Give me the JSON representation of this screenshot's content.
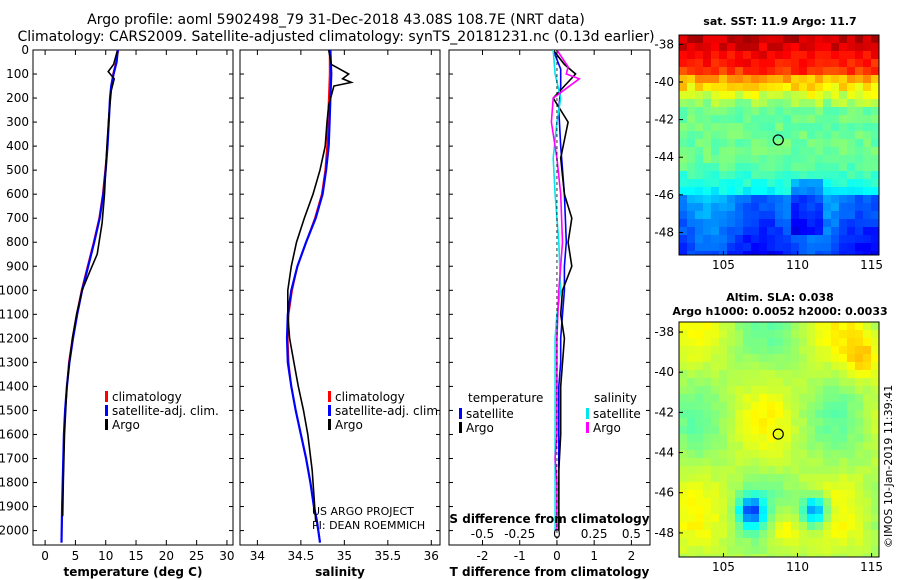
{
  "title_line1": "Argo profile: aoml 5902498_79 31-Dec-2018 43.08S 108.7E (NRT data)",
  "title_line2": "Climatology: CARS2009. Satellite-adjusted climatology: synTS_20181231.nc (0.13d earlier)",
  "credit_line1": "US ARGO PROJECT",
  "credit_line2": "PI: DEAN ROEMMICH",
  "stamp": "©IMOS 10-Jan-2019 11:39:41",
  "colors": {
    "climatology": "#ff0000",
    "satellite": "#0000ff",
    "argo": "#000000",
    "salinity_satellite": "#00e5ee",
    "salinity_argo": "#ff00ff"
  },
  "chart_data": [
    {
      "type": "line",
      "xlabel": "temperature (deg C)",
      "ylabel": "",
      "xlim": [
        -2,
        31
      ],
      "ylim": [
        2060,
        0
      ],
      "xticks": [
        0,
        5,
        10,
        15,
        20,
        25,
        30
      ],
      "yticks": [
        0,
        100,
        200,
        300,
        400,
        500,
        600,
        700,
        800,
        900,
        1000,
        1100,
        1200,
        1300,
        1400,
        1500,
        1600,
        1700,
        1800,
        1900,
        2000
      ],
      "legend": [
        "climatology",
        "satellite-adj. clim.",
        "Argo"
      ],
      "series": [
        {
          "name": "climatology",
          "x": [
            12.1,
            11.7,
            11.2,
            10.9,
            10.7,
            10.5,
            10.3,
            9.9,
            9.5,
            8.9,
            8.0,
            7.0,
            6.0,
            5.2,
            4.5,
            3.9,
            3.6,
            3.3,
            3.1,
            3.0,
            2.9,
            2.8,
            2.7
          ],
          "y": [
            0,
            50,
            100,
            150,
            200,
            300,
            400,
            500,
            600,
            700,
            800,
            900,
            1000,
            1100,
            1200,
            1300,
            1400,
            1500,
            1600,
            1700,
            1800,
            1900,
            2050
          ]
        },
        {
          "name": "satellite-adj. clim.",
          "x": [
            12.0,
            11.8,
            11.3,
            10.9,
            10.7,
            10.5,
            10.3,
            10.0,
            9.6,
            9.0,
            8.1,
            7.1,
            6.1,
            5.3,
            4.6,
            4.0,
            3.6,
            3.3,
            3.1,
            3.0,
            2.9,
            2.8,
            2.7
          ],
          "y": [
            0,
            50,
            100,
            150,
            200,
            300,
            400,
            500,
            600,
            700,
            800,
            900,
            1000,
            1100,
            1200,
            1300,
            1400,
            1500,
            1600,
            1700,
            1800,
            1900,
            2050
          ]
        },
        {
          "name": "Argo",
          "x": [
            11.9,
            11.3,
            10.4,
            11.4,
            10.9,
            10.5,
            10.2,
            10.0,
            9.8,
            9.4,
            8.6,
            7.4,
            6.1,
            5.2,
            4.5,
            4.0,
            3.6,
            3.4,
            3.2,
            3.1,
            3.0,
            2.9
          ],
          "y": [
            5,
            60,
            90,
            120,
            170,
            280,
            400,
            500,
            600,
            720,
            850,
            920,
            1000,
            1100,
            1200,
            1300,
            1400,
            1500,
            1600,
            1700,
            1800,
            1940
          ]
        }
      ]
    },
    {
      "type": "line",
      "xlabel": "salinity",
      "ylabel": "",
      "xlim": [
        33.8,
        36.1
      ],
      "ylim": [
        2060,
        0
      ],
      "xticks": [
        34,
        34.5,
        35,
        35.5,
        36
      ],
      "legend": [
        "climatology",
        "satellite-adj. clim.",
        "Argo"
      ],
      "series": [
        {
          "name": "climatology",
          "x": [
            34.83,
            34.83,
            34.82,
            34.81,
            34.8,
            34.78,
            34.74,
            34.66,
            34.56,
            34.46,
            34.4,
            34.36,
            34.35,
            34.36,
            34.39,
            34.44,
            34.5,
            34.56,
            34.61,
            34.65,
            34.68,
            34.7,
            34.72
          ],
          "y": [
            0,
            100,
            200,
            300,
            400,
            500,
            600,
            700,
            800,
            900,
            1000,
            1100,
            1200,
            1300,
            1400,
            1500,
            1600,
            1700,
            1800,
            1900,
            1950,
            2000,
            2050
          ]
        },
        {
          "name": "satellite-adj. clim.",
          "x": [
            34.84,
            34.85,
            34.84,
            34.83,
            34.82,
            34.79,
            34.75,
            34.67,
            34.56,
            34.46,
            34.39,
            34.35,
            34.34,
            34.35,
            34.39,
            34.44,
            34.5,
            34.56,
            34.61,
            34.65,
            34.68,
            34.7,
            34.72
          ],
          "y": [
            0,
            100,
            200,
            300,
            400,
            500,
            600,
            700,
            800,
            900,
            1000,
            1100,
            1200,
            1300,
            1400,
            1500,
            1600,
            1700,
            1800,
            1900,
            1950,
            2000,
            2050
          ]
        },
        {
          "name": "Argo",
          "x": [
            34.82,
            34.85,
            35.05,
            34.98,
            35.08,
            34.88,
            34.82,
            34.8,
            34.78,
            34.72,
            34.64,
            34.54,
            34.45,
            34.39,
            34.35,
            34.35,
            34.37,
            34.42,
            34.47,
            34.53,
            34.58,
            34.63,
            34.67
          ],
          "y": [
            0,
            60,
            100,
            120,
            135,
            150,
            230,
            300,
            400,
            500,
            600,
            700,
            800,
            900,
            1000,
            1100,
            1200,
            1300,
            1400,
            1500,
            1600,
            1750,
            1960
          ]
        }
      ]
    },
    {
      "type": "line",
      "xlabel": "T difference from climatology",
      "xlabel2": "S difference from climatology",
      "ylabel": "",
      "xlim": [
        -2.9,
        2.5
      ],
      "ylim": [
        2060,
        0
      ],
      "xticks": [
        -2,
        -1,
        0,
        1,
        2
      ],
      "xticks2": [
        "-0.5",
        "-0.25",
        "0",
        "0.25",
        "0.5"
      ],
      "legend_left_title": "temperature",
      "legend_right_title": "salinity",
      "legend": [
        "satellite",
        "Argo",
        "satellite",
        "Argo"
      ],
      "series": [
        {
          "name": "satellite",
          "x": [
            -0.1,
            0.1,
            0.1,
            0.05,
            0.1,
            0.2,
            0.25,
            0.2,
            0.2,
            0.15,
            0.1,
            0.1,
            0.05,
            0.05,
            0.05,
            0.05,
            0.05,
            0.05
          ],
          "y": [
            0,
            80,
            150,
            250,
            400,
            600,
            800,
            900,
            1000,
            1100,
            1200,
            1300,
            1400,
            1500,
            1600,
            1700,
            1800,
            2000
          ]
        },
        {
          "name": "Argo",
          "x": [
            -0.1,
            0.2,
            0.5,
            -0.1,
            0.3,
            0.1,
            0.2,
            0.4,
            0.3,
            0.4,
            0.15,
            0.1,
            0.2,
            0.1,
            0.1,
            0.05,
            0.05,
            0.05
          ],
          "y": [
            0,
            60,
            100,
            200,
            300,
            450,
            600,
            700,
            800,
            900,
            1000,
            1100,
            1200,
            1400,
            1600,
            1750,
            1900,
            2000
          ]
        },
        {
          "name": "satellite",
          "x": [
            -0.1,
            -0.05,
            0.1,
            0.0,
            -0.1,
            -0.05,
            0.05,
            0.1,
            0.0,
            -0.05,
            -0.05,
            -0.05,
            -0.05,
            -0.05,
            -0.05,
            -0.05,
            -0.05,
            -0.05
          ],
          "y": [
            0,
            100,
            200,
            300,
            450,
            600,
            800,
            1000,
            1100,
            1200,
            1300,
            1400,
            1500,
            1600,
            1700,
            1800,
            1900,
            2000
          ]
        },
        {
          "name": "Argo",
          "x": [
            0.0,
            0.3,
            0.25,
            0.6,
            -0.1,
            -0.15,
            0.0,
            0.1,
            0.15,
            0.05,
            0.0,
            0.0,
            0.0,
            -0.05,
            0.0,
            0.0,
            0.0
          ],
          "y": [
            0,
            70,
            100,
            120,
            200,
            300,
            450,
            600,
            800,
            1000,
            1200,
            1400,
            1600,
            1700,
            1800,
            1900,
            2000
          ]
        }
      ]
    },
    {
      "type": "heatmap",
      "title": "sat. SST: 11.9 Argo: 11.7",
      "xticks": [
        105,
        110,
        115
      ],
      "yticks": [
        -38,
        -40,
        -42,
        -44,
        -46,
        -48
      ],
      "xlim": [
        102,
        115.5
      ],
      "ylim": [
        -49.2,
        -37.5
      ],
      "marker": {
        "lon": 108.7,
        "lat": -43.08
      }
    },
    {
      "type": "heatmap",
      "title": "Altim. SLA: 0.038",
      "subtitle": "Argo h1000: 0.0052 h2000: 0.0033",
      "xticks": [
        105,
        110,
        115
      ],
      "yticks": [
        -38,
        -40,
        -42,
        -44,
        -46,
        -48
      ],
      "xlim": [
        102,
        115.5
      ],
      "ylim": [
        -49.2,
        -37.5
      ],
      "marker": {
        "lon": 108.7,
        "lat": -43.08
      }
    }
  ]
}
